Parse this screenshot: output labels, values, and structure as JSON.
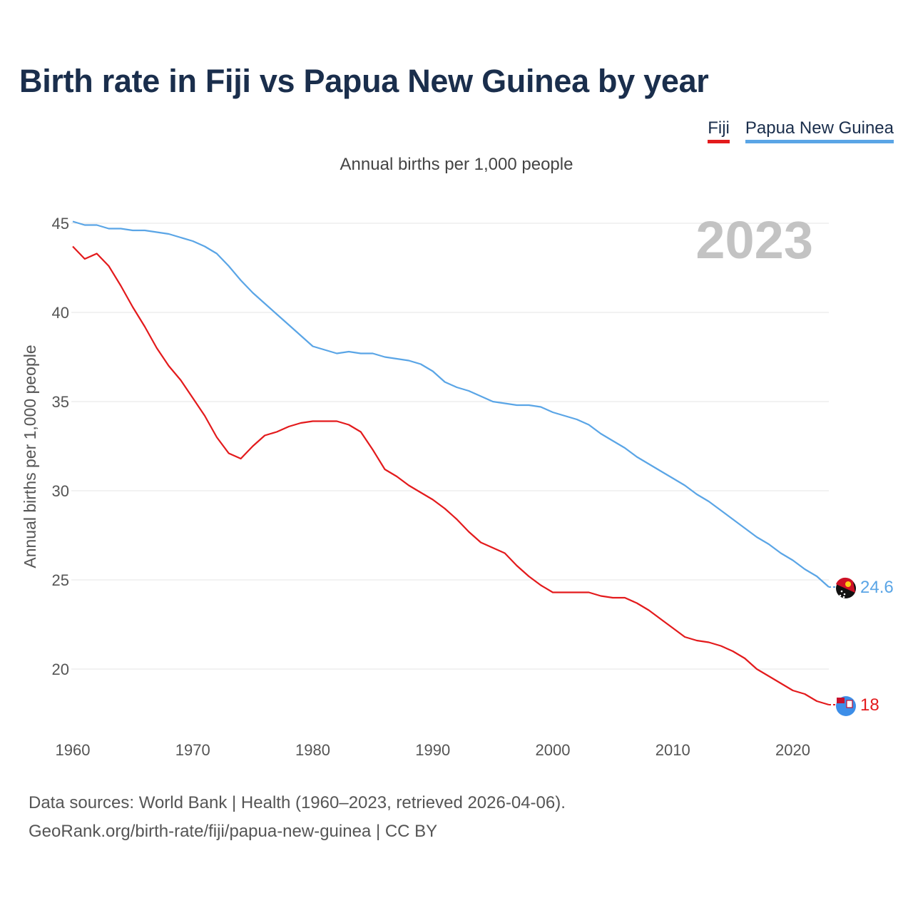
{
  "header": {
    "title": "Birth rate in Fiji vs Papua New Guinea by year",
    "subtitle": "Annual births per 1,000 people"
  },
  "legend": {
    "fiji_label": "Fiji",
    "png_label": "Papua New Guinea"
  },
  "footer": {
    "line1": "Data sources: World Bank | Health (1960–2023, retrieved 2026-04-06).",
    "line2": "GeoRank.org/birth-rate/fiji/papua-new-guinea | CC BY"
  },
  "colors": {
    "fiji": "#e31a1c",
    "png": "#5aa5e6",
    "title": "#1a2e4c",
    "grid": "#e6e6e6"
  },
  "chart_data": {
    "type": "line",
    "title": "Birth rate in Fiji vs Papua New Guinea by year",
    "xlabel": "",
    "ylabel": "Annual births per 1,000 people",
    "xlim": [
      1960,
      2023
    ],
    "ylim": [
      16.4,
      45.2
    ],
    "yticks": [
      20,
      25,
      30,
      35,
      40,
      45
    ],
    "xticks": [
      1960,
      1970,
      1980,
      1990,
      2000,
      2010,
      2020
    ],
    "grid": true,
    "current_year_label": "2023",
    "x": [
      1960,
      1961,
      1962,
      1963,
      1964,
      1965,
      1966,
      1967,
      1968,
      1969,
      1970,
      1971,
      1972,
      1973,
      1974,
      1975,
      1976,
      1977,
      1978,
      1979,
      1980,
      1981,
      1982,
      1983,
      1984,
      1985,
      1986,
      1987,
      1988,
      1989,
      1990,
      1991,
      1992,
      1993,
      1994,
      1995,
      1996,
      1997,
      1998,
      1999,
      2000,
      2001,
      2002,
      2003,
      2004,
      2005,
      2006,
      2007,
      2008,
      2009,
      2010,
      2011,
      2012,
      2013,
      2014,
      2015,
      2016,
      2017,
      2018,
      2019,
      2020,
      2021,
      2022,
      2023
    ],
    "series": [
      {
        "name": "Fiji",
        "color": "#e31a1c",
        "end_label": "18",
        "values": [
          43.7,
          43.0,
          43.3,
          42.6,
          41.5,
          40.3,
          39.2,
          38.0,
          37.0,
          36.2,
          35.2,
          34.2,
          33.0,
          32.1,
          31.8,
          32.5,
          33.1,
          33.3,
          33.6,
          33.8,
          33.9,
          33.9,
          33.9,
          33.7,
          33.3,
          32.3,
          31.2,
          30.8,
          30.3,
          29.9,
          29.5,
          29.0,
          28.4,
          27.7,
          27.1,
          26.8,
          26.5,
          25.8,
          25.2,
          24.7,
          24.3,
          24.3,
          24.3,
          24.3,
          24.1,
          24.0,
          24.0,
          23.7,
          23.3,
          22.8,
          22.3,
          21.8,
          21.6,
          21.5,
          21.3,
          21.0,
          20.6,
          20.0,
          19.6,
          19.2,
          18.8,
          18.6,
          18.2,
          18.0
        ]
      },
      {
        "name": "Papua New Guinea",
        "color": "#5aa5e6",
        "end_label": "24.6",
        "values": [
          45.1,
          44.9,
          44.9,
          44.7,
          44.7,
          44.6,
          44.6,
          44.5,
          44.4,
          44.2,
          44.0,
          43.7,
          43.3,
          42.6,
          41.8,
          41.1,
          40.5,
          39.9,
          39.3,
          38.7,
          38.1,
          37.9,
          37.7,
          37.8,
          37.7,
          37.7,
          37.5,
          37.4,
          37.3,
          37.1,
          36.7,
          36.1,
          35.8,
          35.6,
          35.3,
          35.0,
          34.9,
          34.8,
          34.8,
          34.7,
          34.4,
          34.2,
          34.0,
          33.7,
          33.2,
          32.8,
          32.4,
          31.9,
          31.5,
          31.1,
          30.7,
          30.3,
          29.8,
          29.4,
          28.9,
          28.4,
          27.9,
          27.4,
          27.0,
          26.5,
          26.1,
          25.6,
          25.2,
          24.6
        ]
      }
    ]
  }
}
